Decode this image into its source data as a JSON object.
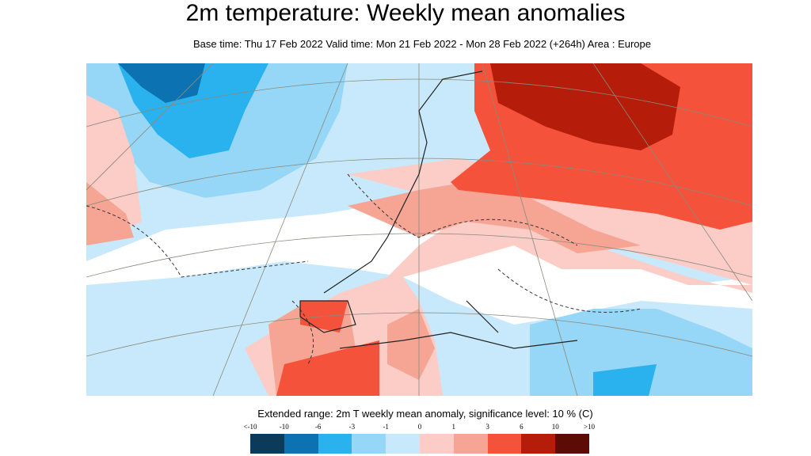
{
  "title": "2m temperature: Weekly mean anomalies",
  "subtitle": "Base time: Thu 17 Feb 2022 Valid time: Mon 21 Feb 2022 - Mon 28 Feb 2022 (+264h) Area : Europe",
  "map": {
    "area": "Europe",
    "projection": "polar stereographic",
    "contours": "dashed significance contour",
    "coastlines": true,
    "graticule": true
  },
  "legend": {
    "title": "Extended range: 2m T weekly mean anomaly, significance level: 10 % (C)",
    "ticks": [
      "<-10",
      "-10",
      "-6",
      "-3",
      "-1",
      "0",
      "1",
      "3",
      "6",
      "10",
      ">10"
    ],
    "colors": [
      "#0b3a5b",
      "#0d72b2",
      "#2ab2ef",
      "#96d6f7",
      "#c8e9fb",
      "#fbcdc6",
      "#f6a594",
      "#f4523a",
      "#b51d0a",
      "#5c0b05"
    ]
  }
}
